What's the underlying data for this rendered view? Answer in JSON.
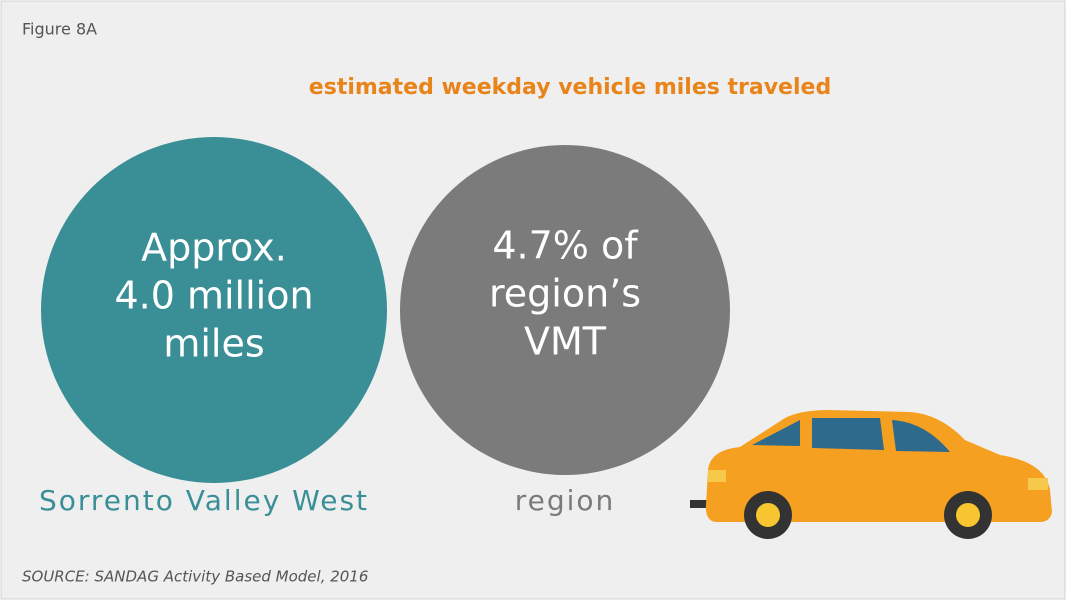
{
  "figure_label": "Figure 8A",
  "title": "estimated weekday vehicle miles traveled",
  "circles": [
    {
      "lines": [
        "Approx.",
        "4.0 million",
        "miles"
      ],
      "label": "Sorrento Valley West"
    },
    {
      "lines": [
        "4.7% of",
        "region’s",
        "VMT"
      ],
      "label": "region"
    }
  ],
  "source": "SOURCE: SANDAG Activity Based Model, 2016"
}
